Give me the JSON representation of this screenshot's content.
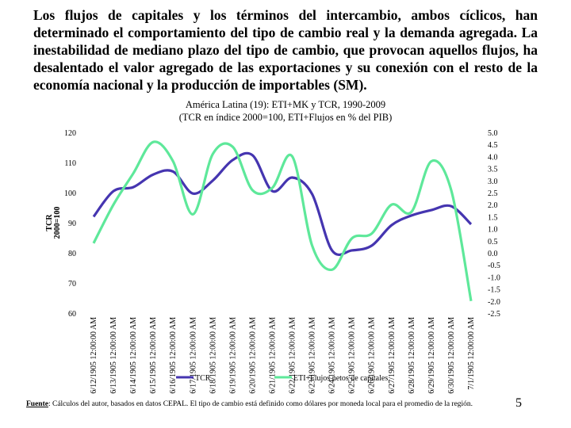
{
  "paragraph": "Los flujos de capitales y los términos del intercambio, ambos cíclicos, han determinado el comportamiento del tipo de cambio real y la demanda agregada. La inestabilidad de mediano plazo del tipo de cambio, que provocan aquellos flujos, ha desalentado el valor agregado de las exportaciones y su conexión con el resto de la economía nacional y la producción de importables (SM).",
  "chart_data": {
    "type": "line",
    "title": "América Latina (19): ETI+MK y TCR, 1990-2009",
    "subtitle": "(TCR en índice 2000=100, ETI+Flujos en % del PIB)",
    "y_label": [
      "TCR",
      "2000=100"
    ],
    "categories": [
      "6/12/1905 12:00:00 AM",
      "6/13/1905 12:00:00 AM",
      "6/14/1905 12:00:00 AM",
      "6/15/1905 12:00:00 AM",
      "6/16/1905 12:00:00 AM",
      "6/17/1905 12:00:00 AM",
      "6/18/1905 12:00:00 AM",
      "6/19/1905 12:00:00 AM",
      "6/20/1905 12:00:00 AM",
      "6/21/1905 12:00:00 AM",
      "6/22/1905 12:00:00 AM",
      "6/23/1905 12:00:00 AM",
      "6/24/1905 12:00:00 AM",
      "6/25/1905 12:00:00 AM",
      "6/26/1905 12:00:00 AM",
      "6/27/1905 12:00:00 AM",
      "6/28/1905 12:00:00 AM",
      "6/29/1905 12:00:00 AM",
      "6/30/1905 12:00:00 AM",
      "7/1/1905 12:00:00 AM"
    ],
    "series": [
      {
        "name": "TCR",
        "color": "#4535b0",
        "values": [
          92,
          100.5,
          101.8,
          106,
          107,
          99.7,
          104,
          110.8,
          112.4,
          100.5,
          105,
          99.5,
          80.8,
          80.8,
          82.4,
          89.2,
          92.4,
          94.2,
          95.5,
          89.5
        ]
      },
      {
        "name": "ETI+Flujos netos de capitales",
        "color": "#5ee89a",
        "axis": "y2",
        "values": [
          0.4,
          2.0,
          3.3,
          4.6,
          3.8,
          1.6,
          4.1,
          4.4,
          2.6,
          2.7,
          4.0,
          0.3,
          -0.7,
          0.6,
          0.8,
          2.0,
          1.7,
          3.8,
          2.6,
          -2.0
        ]
      }
    ],
    "ylim": [
      60,
      120
    ],
    "yticks": [
      60,
      70,
      80,
      90,
      100,
      110,
      120
    ],
    "y2lim": [
      -2.5,
      5
    ],
    "y2ticks": [
      -2.5,
      {
        "value": -2,
        "label": "-2.0"
      },
      -1.5,
      {
        "value": -1,
        "label": "-1.0"
      },
      -0.5,
      {
        "value": 0,
        "label": "0.0"
      },
      0.5,
      {
        "value": 1,
        "label": "1.0"
      },
      1.5,
      {
        "value": 2,
        "label": "2.0"
      },
      2.5,
      {
        "value": 3,
        "label": "3.0"
      },
      3.5,
      {
        "value": 4,
        "label": "4.0"
      },
      4.5,
      {
        "value": 5,
        "label": "5.0"
      }
    ]
  },
  "footnote": {
    "label": "Fuente",
    "text": ": Cálculos del autor, basados en datos CEPAL. El tipo de cambio está definido como dólares por moneda local para el promedio de la región."
  },
  "page_number": 5
}
